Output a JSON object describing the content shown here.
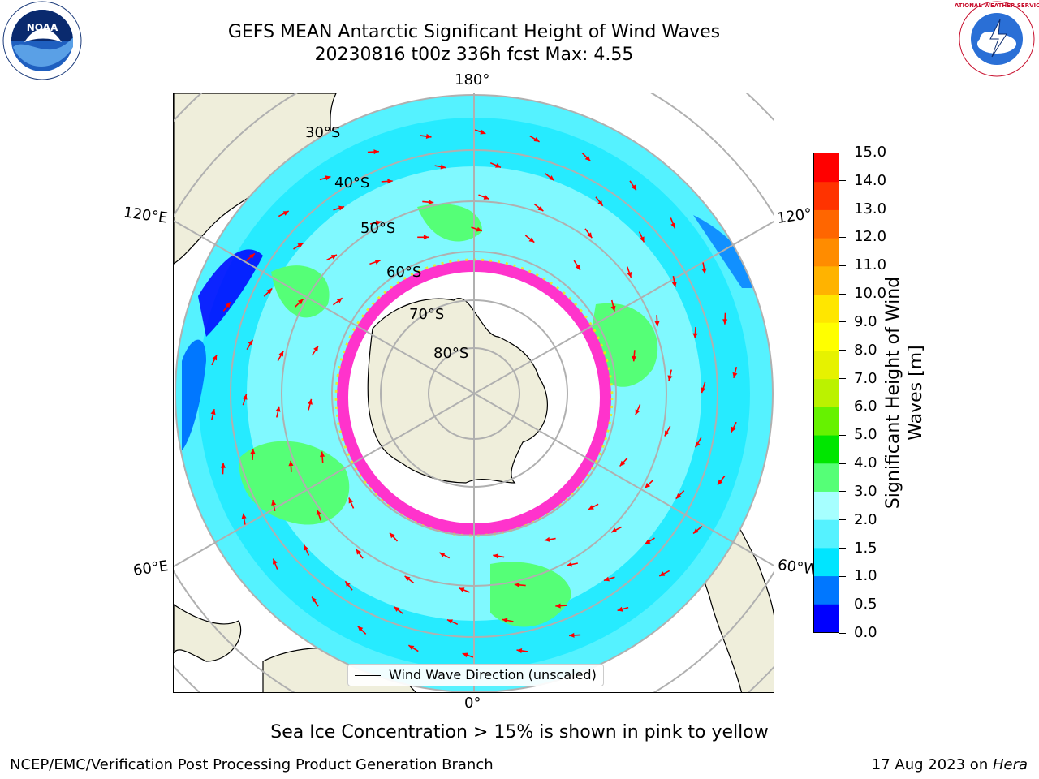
{
  "title_line1": "GEFS MEAN Antarctic Significant Height of Wind Waves",
  "title_line2": "20230816 t00z 336h fcst   Max: 4.55",
  "longitude_labels": {
    "top": "180°",
    "bottom": "0°",
    "upper_left": "120°E",
    "upper_right": "120°",
    "lower_left": "60°E",
    "lower_right": "60°W"
  },
  "latitude_labels": [
    "30°S",
    "40°S",
    "50°S",
    "60°S",
    "70°S",
    "80°S"
  ],
  "legend_label": "Wind Wave Direction (unscaled)",
  "colorbar": {
    "title_line1": "Significant Height of Wind",
    "title_line2": "Waves [m]",
    "ticks": [
      "0.0",
      "0.5",
      "1.0",
      "1.5",
      "2.0",
      "3.0",
      "4.0",
      "5.0",
      "6.0",
      "7.0",
      "8.0",
      "9.0",
      "10.0",
      "11.0",
      "12.0",
      "13.0",
      "14.0",
      "15.0"
    ],
    "colors": [
      "#0000ff",
      "#0077ff",
      "#00e5ff",
      "#55f2ff",
      "#a6ffff",
      "#55ff77",
      "#00e600",
      "#66f200",
      "#bbf200",
      "#e6f200",
      "#ffff00",
      "#ffe600",
      "#ffb300",
      "#ff8c00",
      "#ff6600",
      "#ff3300",
      "#ff0000"
    ]
  },
  "note": "Sea Ice Concentration > 15% is shown in pink to yellow",
  "footer_left": "NCEP/EMC/Verification Post Processing Product Generation Branch",
  "footer_right_prefix": "17 Aug 2023 on ",
  "footer_right_machine": "Hera",
  "logos": {
    "left_text": "NOAA",
    "right_text": "NATIONAL WEATHER SERVICE"
  },
  "map_colors": {
    "land": "#efeedb",
    "ice_edge": "#ff33cc",
    "arrow": "#ff0000",
    "grid": "#b0b0b0"
  }
}
